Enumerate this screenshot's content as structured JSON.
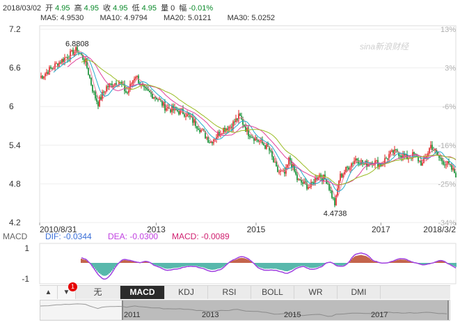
{
  "quote": {
    "date": "2018/03/02",
    "open_label": "开",
    "open": "4.95",
    "high_label": "高",
    "high": "4.95",
    "close_label": "收",
    "close": "4.95",
    "low_label": "低",
    "low": "4.95",
    "volume_label": "量",
    "volume": "0",
    "change_label": "幅",
    "change": "-0.01%"
  },
  "moving_averages": [
    {
      "label": "MA5: 4.9530",
      "color": "#f07a9a"
    },
    {
      "label": "MA10: 4.9794",
      "color": "#22aacc"
    },
    {
      "label": "MA20: 5.0121",
      "color": "#e0409a"
    },
    {
      "label": "MA30: 5.0252",
      "color": "#99bb22"
    }
  ],
  "watermark": "sina新浪财经",
  "macd_header": {
    "name": "MACD",
    "dif": "DIF: -0.0344",
    "dea": "DEA: -0.0300",
    "macd": "MACD: -0.0089"
  },
  "macd_axis": [
    "1",
    "-1"
  ],
  "tabs": {
    "up_arrow": "▲",
    "down_arrow": "▼",
    "badge": "1",
    "items": [
      "无",
      "MACD",
      "KDJ",
      "RSI",
      "BOLL",
      "WR",
      "DMI"
    ],
    "active": "MACD"
  },
  "navigator": {
    "labels": [
      "2011",
      "2013",
      "2015",
      "2017"
    ]
  },
  "colors": {
    "up": "#e02020",
    "down": "#0a8a2a",
    "dif_line": "#a040e0",
    "macd_pos": "#b03010",
    "macd_neg": "#20a090"
  },
  "chart_data": {
    "type": "candlestick",
    "y_ticks": [
      "7.2",
      "6.6",
      "6",
      "5.4",
      "4.8",
      "4.2"
    ],
    "ylim": [
      4.2,
      7.2
    ],
    "right_ticks": [
      "13%",
      "3%",
      "-6%",
      "-16%",
      "-25%",
      "-34%"
    ],
    "x_ticks": [
      "2010/8/31",
      "2013",
      "2015",
      "2017",
      "2018/3/2"
    ],
    "annotations": [
      {
        "label": "6.8808",
        "value": 6.8808
      },
      {
        "label": "4.4738",
        "value": 4.4738
      }
    ],
    "series": [
      {
        "name": "price",
        "t": [
          0,
          0.03,
          0.06,
          0.09,
          0.11,
          0.13,
          0.14,
          0.16,
          0.19,
          0.21,
          0.23,
          0.25,
          0.28,
          0.3,
          0.32,
          0.35,
          0.38,
          0.41,
          0.44,
          0.46,
          0.48,
          0.5,
          0.53,
          0.55,
          0.57,
          0.59,
          0.6,
          0.62,
          0.65,
          0.67,
          0.69,
          0.71,
          0.72,
          0.74,
          0.76,
          0.78,
          0.8,
          0.82,
          0.84,
          0.86,
          0.88,
          0.9,
          0.92,
          0.94,
          0.96,
          0.98,
          1.0
        ],
        "values": [
          6.45,
          6.6,
          6.75,
          6.88,
          6.7,
          6.2,
          6.05,
          6.3,
          6.4,
          6.2,
          6.5,
          6.25,
          6.15,
          6.0,
          5.95,
          5.9,
          5.7,
          5.45,
          5.65,
          5.7,
          5.85,
          5.6,
          5.45,
          5.35,
          5.0,
          4.95,
          5.2,
          4.85,
          4.75,
          4.95,
          4.85,
          4.47,
          4.9,
          5.05,
          5.2,
          5.1,
          5.15,
          5.1,
          5.25,
          5.3,
          5.2,
          5.25,
          5.1,
          5.4,
          5.2,
          5.1,
          4.95
        ]
      }
    ]
  }
}
